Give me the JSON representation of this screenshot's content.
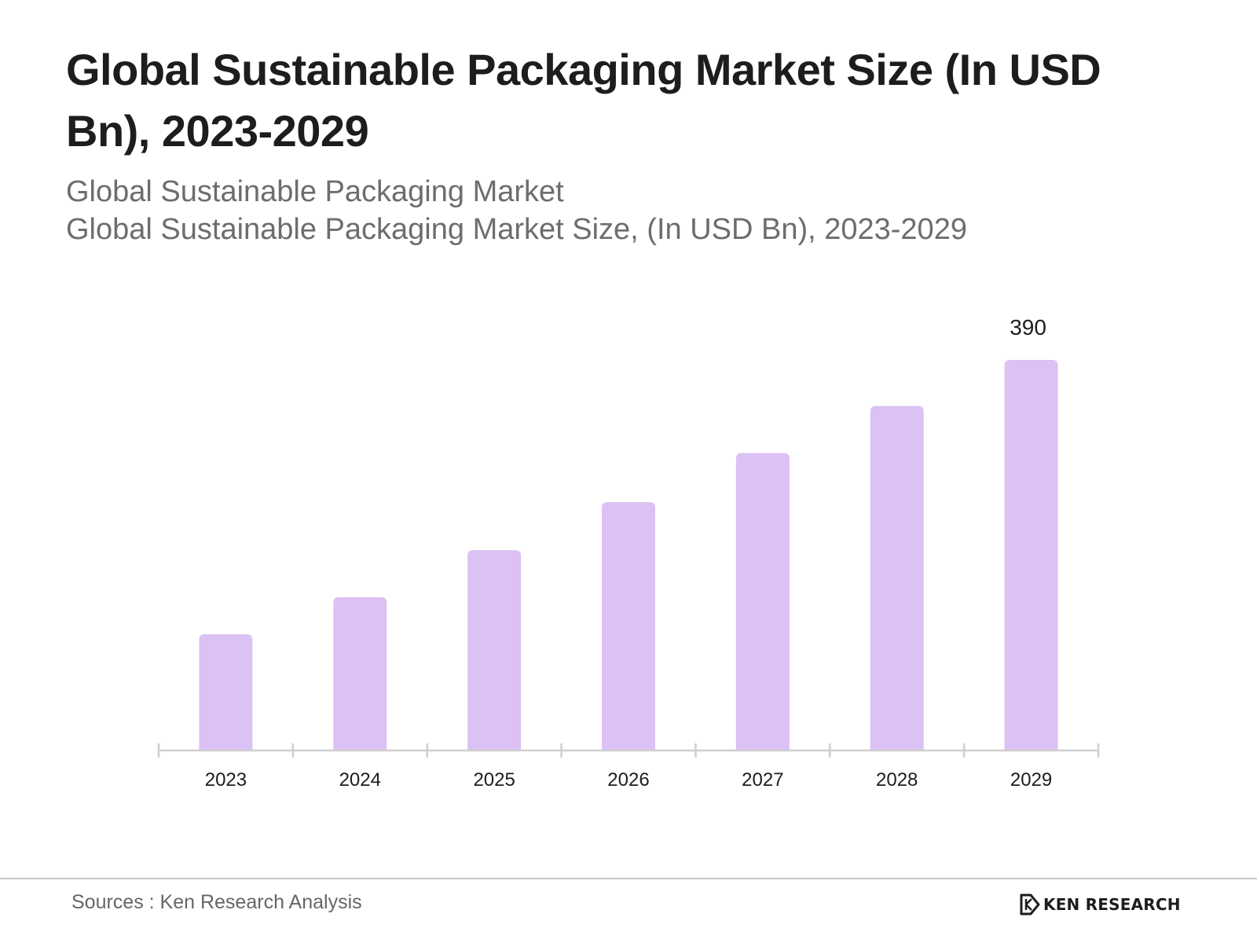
{
  "header": {
    "title": "Global Sustainable Packaging Market Size (In USD Bn), 2023-2029",
    "subtitle_line1": "Global Sustainable Packaging Market",
    "subtitle_line2": "Global Sustainable Packaging Market Size, (In USD Bn), 2023-2029"
  },
  "chart_data": {
    "type": "bar",
    "title": "Global Sustainable Packaging Market Size (In USD Bn), 2023-2029",
    "categories": [
      "2023",
      "2024",
      "2025",
      "2026",
      "2027",
      "2028",
      "2029"
    ],
    "values": [
      116,
      153,
      200,
      248,
      297,
      344,
      390
    ],
    "data_labels": {
      "2029": "390"
    },
    "xlabel": "",
    "ylabel": "",
    "ylim": [
      0,
      390
    ],
    "grid": false,
    "legend": "none",
    "bar_color": "#dcc1f4",
    "axis_color": "#cfcfcf"
  },
  "footer": {
    "source": "Sources : Ken Research Analysis",
    "brand": "KEN RESEARCH",
    "logo_icon": "ken-research-logo-icon"
  },
  "colors": {
    "title": "#1d1d1d",
    "subtitle": "#6d6d6d",
    "footer_text": "#666666"
  }
}
